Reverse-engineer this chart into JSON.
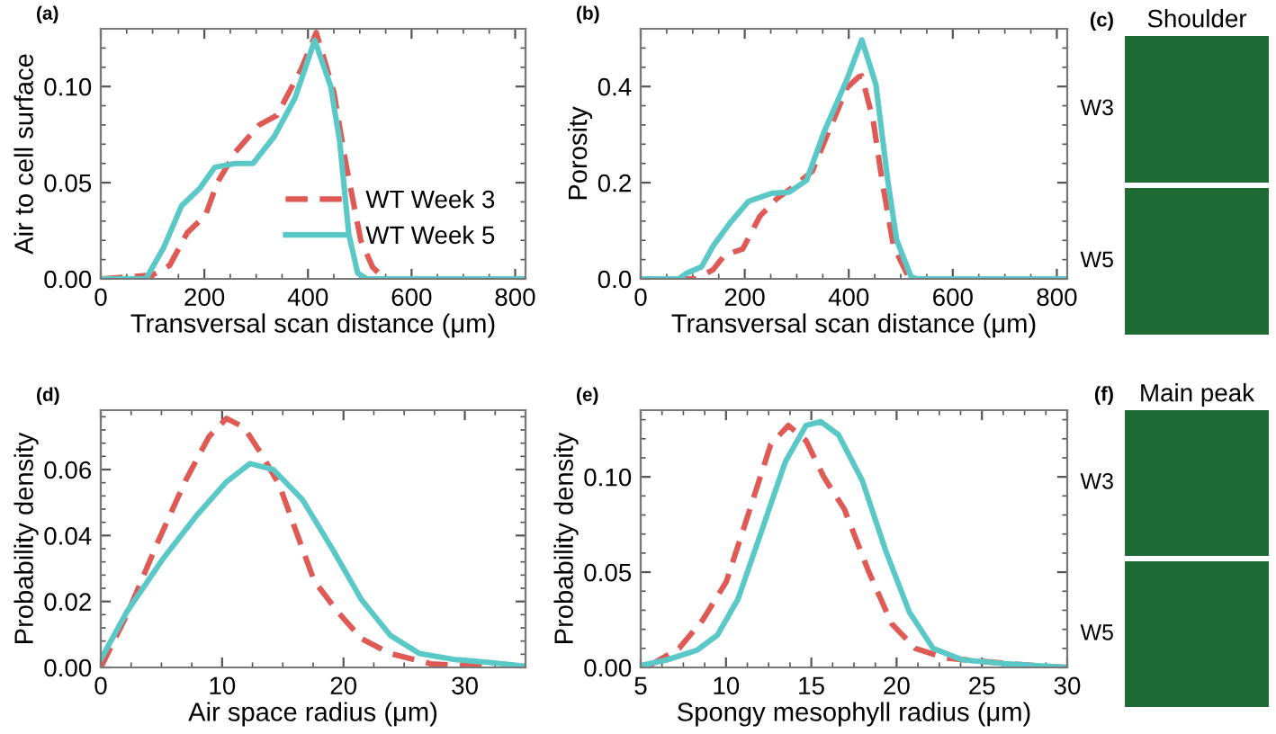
{
  "chart_data": [
    {
      "type": "line",
      "annotations": [
        "(a)"
      ],
      "xlabel": "Transversal scan distance (μm)",
      "ylabel": "Air to cell surface",
      "xlim": [
        0,
        820
      ],
      "ylim": [
        0,
        0.13
      ],
      "xticks": [
        0,
        200,
        400,
        600,
        800
      ],
      "yticks": [
        {
          "value": 0,
          "label": "0.00"
        },
        {
          "value": 0.05,
          "label": "0.05"
        },
        {
          "value": 0.1,
          "label": "0.10"
        }
      ],
      "legend": "bottom right",
      "series": [
        {
          "name": "WT Week 3",
          "color": "#e05a55",
          "line_style": "dashed",
          "x": [
            0,
            50,
            100,
            133,
            167,
            202,
            225,
            260,
            306,
            340,
            387,
            416,
            450,
            473,
            502,
            525,
            548
          ],
          "values": [
            0,
            0.001,
            0.002,
            0.007,
            0.024,
            0.033,
            0.05,
            0.066,
            0.08,
            0.085,
            0.109,
            0.128,
            0.097,
            0.06,
            0.02,
            0.006,
            0
          ]
        },
        {
          "name": "WT Week 5",
          "color": "#5bc8c8",
          "line_style": "solid",
          "x": [
            0,
            87,
            121,
            156,
            191,
            220,
            260,
            294,
            335,
            375,
            413,
            444,
            461,
            479,
            496,
            514,
            820
          ],
          "values": [
            0,
            0,
            0.016,
            0.038,
            0.047,
            0.058,
            0.06,
            0.06,
            0.074,
            0.094,
            0.124,
            0.1,
            0.072,
            0.023,
            0.003,
            0,
            0
          ]
        }
      ]
    },
    {
      "type": "line",
      "annotations": [
        "(b)"
      ],
      "xlabel": "Transversal scan distance (μm)",
      "ylabel": "Porosity",
      "xlim": [
        0,
        820
      ],
      "ylim": [
        0,
        0.52
      ],
      "xticks": [
        0,
        200,
        400,
        600,
        800
      ],
      "yticks": [
        {
          "value": 0,
          "label": "0.0"
        },
        {
          "value": 0.2,
          "label": "0.2"
        },
        {
          "value": 0.4,
          "label": "0.4"
        }
      ],
      "series": [
        {
          "color": "#e05a55",
          "line_style": "dashed",
          "x": [
            0,
            106,
            139,
            162,
            196,
            229,
            263,
            296,
            330,
            363,
            397,
            419,
            425,
            447,
            464,
            486,
            514,
            525,
            820
          ],
          "values": [
            0,
            0,
            0.019,
            0.05,
            0.062,
            0.13,
            0.168,
            0.193,
            0.224,
            0.311,
            0.398,
            0.42,
            0.422,
            0.329,
            0.205,
            0.068,
            0.006,
            0,
            0
          ]
        },
        {
          "color": "#5bc8c8",
          "line_style": "solid",
          "x": [
            0,
            73,
            89,
            117,
            139,
            173,
            207,
            252,
            285,
            319,
            352,
            397,
            425,
            452,
            475,
            492,
            520,
            531,
            820
          ],
          "values": [
            0,
            0,
            0.012,
            0.025,
            0.068,
            0.118,
            0.161,
            0.178,
            0.18,
            0.205,
            0.304,
            0.416,
            0.497,
            0.405,
            0.205,
            0.081,
            0.004,
            0,
            0
          ]
        }
      ]
    },
    {
      "type": "other",
      "title": "Shoulder",
      "annotations": [
        "(c)",
        "W3",
        "W5"
      ]
    },
    {
      "type": "line",
      "annotations": [
        "(d)"
      ],
      "xlabel": "Air space radius (μm)",
      "ylabel": "Probability density",
      "xlim": [
        0,
        35
      ],
      "ylim": [
        0,
        0.078
      ],
      "xticks": [
        0,
        10,
        20,
        30
      ],
      "yticks": [
        {
          "value": 0,
          "label": "0.00"
        },
        {
          "value": 0.02,
          "label": "0.02"
        },
        {
          "value": 0.04,
          "label": "0.04"
        },
        {
          "value": 0.06,
          "label": "0.06"
        }
      ],
      "series": [
        {
          "color": "#e05a55",
          "line_style": "dashed",
          "x": [
            0,
            2.17,
            4.58,
            6.99,
            8.92,
            10.36,
            11.81,
            13.25,
            14.7,
            16.14,
            17.59,
            19.5,
            21.45,
            23.86,
            27.2,
            30.1,
            32.5
          ],
          "values": [
            0,
            0.0161,
            0.037,
            0.0567,
            0.07,
            0.0755,
            0.0728,
            0.0646,
            0.0554,
            0.0408,
            0.0262,
            0.017,
            0.0088,
            0.0042,
            0.0011,
            0.0005,
            0
          ]
        },
        {
          "color": "#5bc8c8",
          "line_style": "solid",
          "x": [
            0,
            2.17,
            5.06,
            7.95,
            10.36,
            12.29,
            14.22,
            16.63,
            19.04,
            21.45,
            23.86,
            26.27,
            29.16,
            32.05,
            34.7
          ],
          "values": [
            0.0024,
            0.017,
            0.0326,
            0.0463,
            0.0563,
            0.0618,
            0.06,
            0.0508,
            0.0362,
            0.0207,
            0.0097,
            0.0042,
            0.0024,
            0.0015,
            0.0005
          ]
        }
      ]
    },
    {
      "type": "line",
      "annotations": [
        "(e)"
      ],
      "xlabel": "Spongy mesophyll radius (μm)",
      "ylabel": "Probability density",
      "xlim": [
        5,
        30
      ],
      "ylim": [
        0,
        0.135
      ],
      "xticks": [
        5,
        10,
        15,
        20,
        25,
        30
      ],
      "yticks": [
        {
          "value": 0,
          "label": "0.00"
        },
        {
          "value": 0.05,
          "label": "0.05"
        },
        {
          "value": 0.1,
          "label": "0.10"
        }
      ],
      "series": [
        {
          "color": "#e05a55",
          "line_style": "dashed",
          "x": [
            5.52,
            7.25,
            8.64,
            10.02,
            11.4,
            12.62,
            13.66,
            14.69,
            15.73,
            16.94,
            18.33,
            19.71,
            21.1,
            22.83,
            25.26,
            28.03,
            30
          ],
          "values": [
            0.001,
            0.01,
            0.025,
            0.045,
            0.083,
            0.117,
            0.127,
            0.119,
            0.1,
            0.083,
            0.051,
            0.023,
            0.01,
            0.005,
            0.003,
            0.001,
            0
          ]
        },
        {
          "color": "#5bc8c8",
          "line_style": "solid",
          "x": [
            5,
            6.56,
            8.29,
            9.5,
            10.71,
            12.1,
            13.48,
            14.69,
            15.56,
            16.6,
            17.99,
            19.37,
            20.75,
            22.14,
            23.87,
            26.3,
            30
          ],
          "values": [
            0.001,
            0.004,
            0.009,
            0.017,
            0.036,
            0.072,
            0.108,
            0.127,
            0.129,
            0.122,
            0.098,
            0.061,
            0.029,
            0.01,
            0.004,
            0.002,
            0
          ]
        }
      ]
    },
    {
      "type": "other",
      "title": "Main peak",
      "annotations": [
        "(f)",
        "W3",
        "W5"
      ]
    }
  ]
}
